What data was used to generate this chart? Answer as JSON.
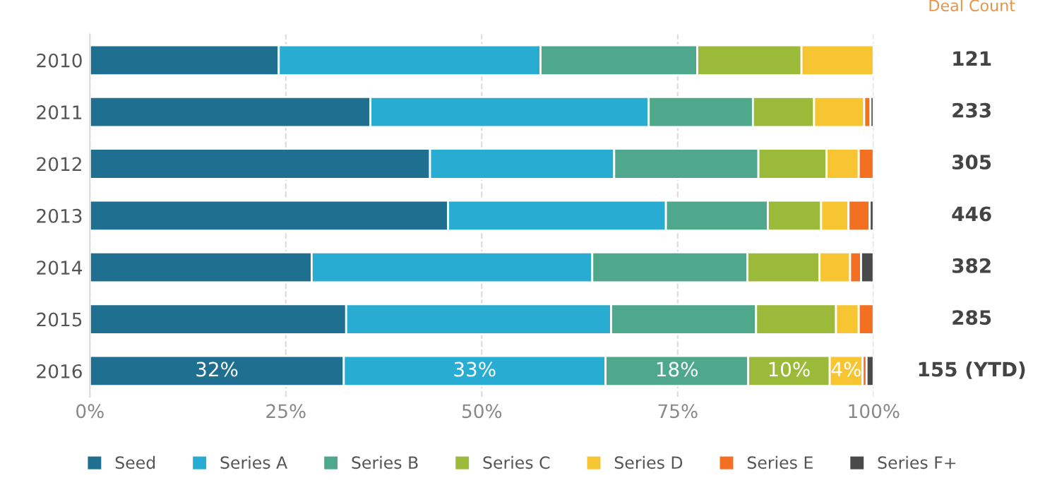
{
  "chart_data": {
    "type": "bar",
    "orientation": "horizontal",
    "stacked": true,
    "categories": [
      "2010",
      "2011",
      "2012",
      "2013",
      "2014",
      "2015",
      "2016"
    ],
    "series": [
      {
        "name": "Seed",
        "color": "#1f6f91",
        "values": [
          24.1,
          35.8,
          43.4,
          45.7,
          28.3,
          32.7,
          32.4
        ],
        "value_labels": [
          null,
          null,
          null,
          null,
          null,
          null,
          "32%"
        ]
      },
      {
        "name": "Series A",
        "color": "#29acd2",
        "values": [
          33.4,
          35.5,
          23.5,
          27.8,
          35.8,
          33.8,
          33.4
        ],
        "value_labels": [
          null,
          null,
          null,
          null,
          null,
          null,
          "33%"
        ]
      },
      {
        "name": "Series B",
        "color": "#4fa88c",
        "values": [
          20.0,
          13.3,
          18.4,
          13.0,
          19.8,
          18.5,
          18.2
        ],
        "value_labels": [
          null,
          null,
          null,
          null,
          null,
          null,
          "18%"
        ]
      },
      {
        "name": "Series C",
        "color": "#9cba39",
        "values": [
          13.3,
          7.8,
          8.7,
          6.8,
          9.2,
          10.2,
          10.4
        ],
        "value_labels": [
          null,
          null,
          null,
          null,
          null,
          null,
          "10%"
        ]
      },
      {
        "name": "Series D",
        "color": "#f7c532",
        "values": [
          9.2,
          6.4,
          4.1,
          3.5,
          3.9,
          2.9,
          4.2
        ],
        "value_labels": [
          null,
          null,
          null,
          null,
          null,
          null,
          "4%"
        ]
      },
      {
        "name": "Series E",
        "color": "#f36f21",
        "values": [
          null,
          0.8,
          1.9,
          2.7,
          1.4,
          1.9,
          0.5
        ]
      },
      {
        "name": "Series F+",
        "color": "#4a4a4a",
        "values": [
          null,
          0.4,
          null,
          0.5,
          1.6,
          null,
          0.9
        ]
      }
    ],
    "xlim": [
      0,
      100
    ],
    "xticks": [
      {
        "value": 0,
        "label": "0%"
      },
      {
        "value": 25,
        "label": "25%"
      },
      {
        "value": 50,
        "label": "50%"
      },
      {
        "value": 75,
        "label": "75%"
      },
      {
        "value": 100,
        "label": "100%"
      }
    ],
    "grid": "x",
    "legend": "bottom",
    "annotations": [
      "Deal Count",
      "121",
      "233",
      "305",
      "446",
      "382",
      "285",
      "155 (YTD)"
    ]
  }
}
